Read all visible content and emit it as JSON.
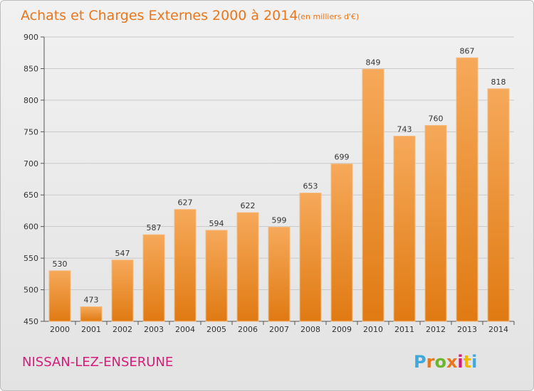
{
  "header": {
    "title": "Achats et Charges Externes 2000 à 2014",
    "unit": "(en milliers d'€)"
  },
  "footer": {
    "location": "NISSAN-LEZ-ENSERUNE",
    "brand_letters": [
      "P",
      "r",
      "o",
      "x",
      "i",
      "t",
      "i"
    ],
    "brand_colors": [
      "#3fa8dc",
      "#e8761c",
      "#6cb52d",
      "#e8761c",
      "#d81b7a",
      "#f0b800",
      "#3fa8dc"
    ]
  },
  "colors": {
    "accent": "#e8761c",
    "bar_light": "#f6a95a",
    "bar_dark": "#e07a12",
    "location": "#d81b7a"
  },
  "chart_data": {
    "type": "bar",
    "title": "Achats et Charges Externes 2000 à 2014",
    "subtitle": "(en milliers d'€)",
    "categories": [
      "2000",
      "2001",
      "2002",
      "2003",
      "2004",
      "2005",
      "2006",
      "2007",
      "2008",
      "2009",
      "2010",
      "2011",
      "2012",
      "2013",
      "2014"
    ],
    "values": [
      530,
      473,
      547,
      587,
      627,
      594,
      622,
      599,
      653,
      699,
      849,
      743,
      760,
      867,
      818
    ],
    "ylim": [
      450,
      900
    ],
    "yticks": [
      450,
      500,
      550,
      600,
      650,
      700,
      750,
      800,
      850,
      900
    ],
    "grid": true,
    "xlabel": "",
    "ylabel": ""
  }
}
